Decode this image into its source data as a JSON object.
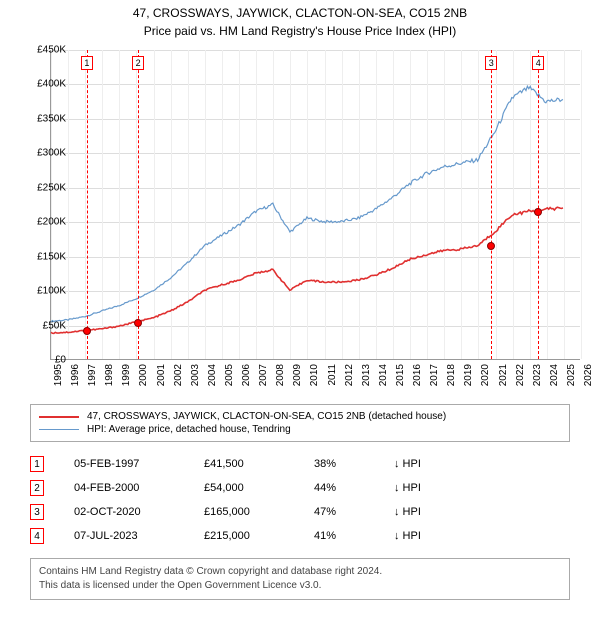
{
  "title_line1": "47, CROSSWAYS, JAYWICK, CLACTON-ON-SEA, CO15 2NB",
  "title_line2": "Price paid vs. HM Land Registry's House Price Index (HPI)",
  "chart": {
    "type": "line",
    "background_color": "#ffffff",
    "grid_color": "#dddddd",
    "xlim": [
      1995,
      2026
    ],
    "ylim": [
      0,
      450000
    ],
    "ytick_step": 50000,
    "ylabels": [
      "£0",
      "£50K",
      "£100K",
      "£150K",
      "£200K",
      "£250K",
      "£300K",
      "£350K",
      "£400K",
      "£450K"
    ],
    "xlabels": [
      "1995",
      "1996",
      "1997",
      "1998",
      "1999",
      "2000",
      "2001",
      "2002",
      "2003",
      "2004",
      "2005",
      "2006",
      "2007",
      "2008",
      "2009",
      "2010",
      "2011",
      "2012",
      "2013",
      "2014",
      "2015",
      "2016",
      "2017",
      "2018",
      "2019",
      "2020",
      "2021",
      "2022",
      "2023",
      "2024",
      "2025",
      "2026"
    ],
    "series": [
      {
        "name": "hpi",
        "color": "#6699cc",
        "line_width": 1.2,
        "data_yearly": [
          55000,
          57000,
          62000,
          70000,
          78000,
          88000,
          100000,
          118000,
          140000,
          165000,
          180000,
          195000,
          215000,
          225000,
          185000,
          205000,
          200000,
          200000,
          205000,
          218000,
          235000,
          255000,
          270000,
          280000,
          285000,
          290000,
          330000,
          380000,
          395000,
          375000,
          378000
        ]
      },
      {
        "name": "price_paid",
        "color": "#e03030",
        "line_width": 1.6,
        "data_yearly": [
          38000,
          39000,
          41500,
          44000,
          48000,
          54000,
          60000,
          70000,
          83000,
          100000,
          108000,
          115000,
          125000,
          130000,
          100000,
          115000,
          112000,
          112000,
          115000,
          122000,
          132000,
          145000,
          152000,
          158000,
          160000,
          165000,
          185000,
          210000,
          215000,
          218000,
          220000
        ]
      }
    ],
    "markers": [
      {
        "n": "1",
        "year": 1997.1,
        "price": 41500
      },
      {
        "n": "2",
        "year": 2000.1,
        "price": 54000
      },
      {
        "n": "3",
        "year": 2020.75,
        "price": 165000
      },
      {
        "n": "4",
        "year": 2023.5,
        "price": 215000
      }
    ]
  },
  "legend": {
    "items": [
      {
        "color": "#e03030",
        "width": 2,
        "label": "47, CROSSWAYS, JAYWICK, CLACTON-ON-SEA, CO15 2NB (detached house)"
      },
      {
        "color": "#6699cc",
        "width": 1,
        "label": "HPI: Average price, detached house, Tendring"
      }
    ]
  },
  "transactions": [
    {
      "n": "1",
      "date": "05-FEB-1997",
      "price": "£41,500",
      "pct": "38%",
      "rel": "↓ HPI"
    },
    {
      "n": "2",
      "date": "04-FEB-2000",
      "price": "£54,000",
      "pct": "44%",
      "rel": "↓ HPI"
    },
    {
      "n": "3",
      "date": "02-OCT-2020",
      "price": "£165,000",
      "pct": "47%",
      "rel": "↓ HPI"
    },
    {
      "n": "4",
      "date": "07-JUL-2023",
      "price": "£215,000",
      "pct": "41%",
      "rel": "↓ HPI"
    }
  ],
  "footer_line1": "Contains HM Land Registry data © Crown copyright and database right 2024.",
  "footer_line2": "This data is licensed under the Open Government Licence v3.0."
}
